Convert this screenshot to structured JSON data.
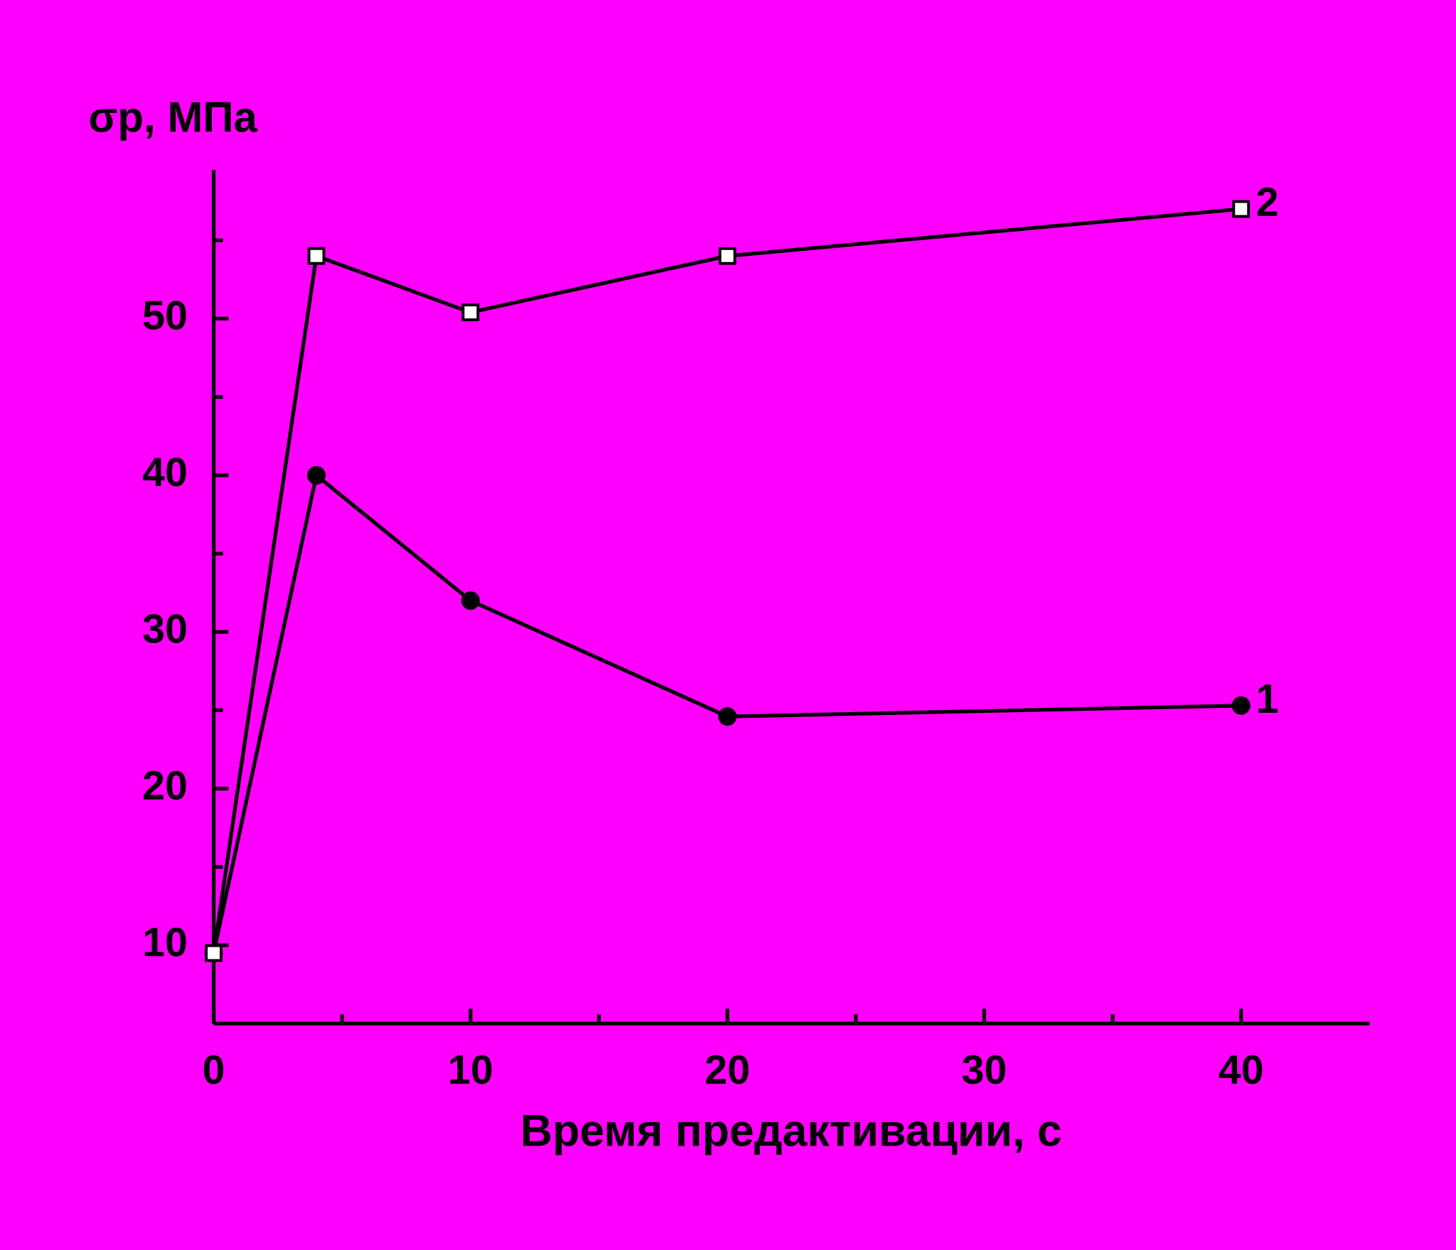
{
  "chart_data": {
    "type": "line",
    "y_label": "σр, МПа",
    "x_label": "Время предактивации, с",
    "background": "#ff00ff",
    "xlim": [
      0,
      45
    ],
    "xticks": [
      0,
      10,
      20,
      30,
      40
    ],
    "xminorticks": [
      5,
      15,
      25,
      35
    ],
    "ylim": [
      5,
      59.5
    ],
    "yticks": [
      10,
      20,
      30,
      40,
      50
    ],
    "yminorticks": [
      15,
      25,
      35,
      45,
      55
    ],
    "series": [
      {
        "name": "1",
        "color": "#000000",
        "marker": "circle",
        "x": [
          0,
          4,
          10,
          20,
          40
        ],
        "values": [
          9.5,
          40,
          32,
          24.6,
          25.3
        ]
      },
      {
        "name": "2",
        "color": "#000000",
        "marker": "square",
        "x": [
          0,
          4,
          10,
          20,
          40
        ],
        "values": [
          9.5,
          54,
          50.4,
          54,
          57
        ]
      }
    ]
  }
}
